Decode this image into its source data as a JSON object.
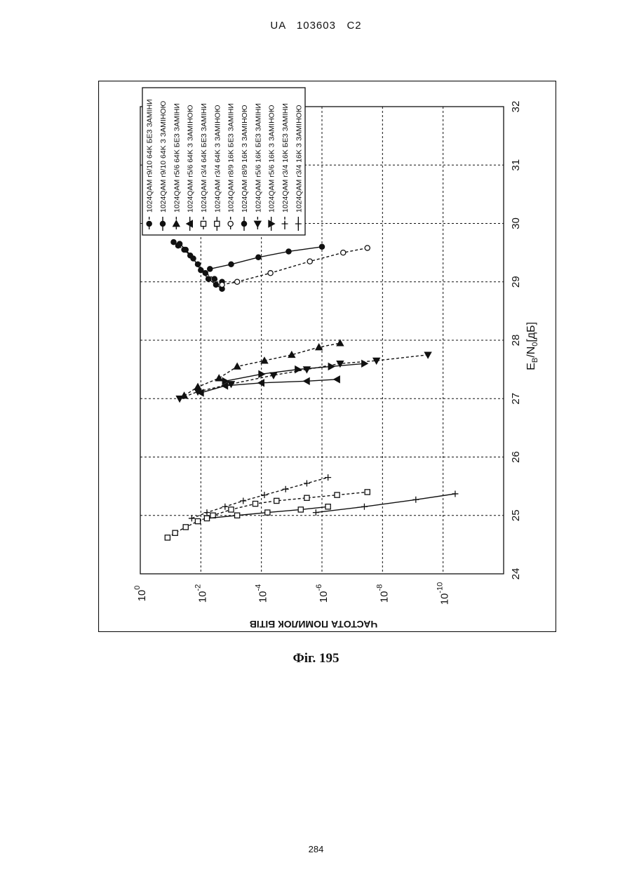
{
  "header": {
    "patent_id": "UA   103603   C2"
  },
  "caption": "Фiг. 195",
  "page_number": "284",
  "chart_data": {
    "type": "line",
    "orientation": "page rotated 90° counter-clockwise",
    "xlabel": "E_B/N_0[дБ]",
    "xlabel_parts": {
      "main": "E",
      "sub1": "B",
      "sep": "/N",
      "sub2": "0",
      "unit": "[дБ]"
    },
    "ylabel": "ЧАСТОТА ПОМИЛОК БІТІВ",
    "xlim": [
      24,
      32
    ],
    "xticks": [
      "24",
      "25",
      "26",
      "27",
      "28",
      "29",
      "30",
      "31",
      "32"
    ],
    "ylim_exp": [
      0,
      -12
    ],
    "yticks": [
      {
        "base": "10",
        "exp": "0",
        "value": 0
      },
      {
        "base": "10",
        "exp": "-2",
        "value": -2
      },
      {
        "base": "10",
        "exp": "-4",
        "value": -4
      },
      {
        "base": "10",
        "exp": "-6",
        "value": -6
      },
      {
        "base": "10",
        "exp": "-8",
        "value": -8
      },
      {
        "base": "10",
        "exp": "-10",
        "value": -10
      }
    ],
    "yscale": "log",
    "grid": true,
    "legend_position": "top-right",
    "series": [
      {
        "name": "1024QAM r9/10 64K",
        "note": "БЕЗ ЗАМІНИ",
        "legend_label": "1024QAM r9/10 64K БЕЗ ЗАМІНИ",
        "marker": "filled-circle",
        "dash": "4,3",
        "x": [
          29.0,
          29.05,
          29.15,
          29.3,
          29.45,
          29.55,
          29.62,
          29.68
        ],
        "y": [
          -2.7,
          -2.45,
          -2.15,
          -1.9,
          -1.65,
          -1.45,
          -1.25,
          -1.1
        ]
      },
      {
        "name": "1024QAM r9/10 64K",
        "note": "З ЗАМІНОЮ",
        "legend_label": "1024QAM r9/10 64K З ЗАМІНОЮ",
        "marker": "filled-circle",
        "dash": "",
        "x": [
          28.88,
          28.95,
          29.05,
          29.2,
          29.4,
          29.55,
          29.65
        ],
        "y": [
          -2.7,
          -2.5,
          -2.25,
          -2.0,
          -1.75,
          -1.5,
          -1.3
        ]
      },
      {
        "name": "1024QAM r5/6 64K",
        "note": "БЕЗ ЗАМІНИ",
        "legend_label": "1024QAM r5/6 64K БЕЗ ЗАМІНИ",
        "marker": "triangle-up",
        "dash": "4,3",
        "x": [
          27.05,
          27.2,
          27.35,
          27.55,
          27.65,
          27.75,
          27.88,
          27.95
        ],
        "y": [
          -1.45,
          -1.9,
          -2.6,
          -3.2,
          -4.1,
          -5.0,
          -5.9,
          -6.6
        ]
      },
      {
        "name": "1024QAM r5/6 64K",
        "note": "З ЗАМІНОЮ",
        "legend_label": "1024QAM r5/6 64K З ЗАМІНОЮ",
        "marker": "triangle-left",
        "dash": "",
        "x": [
          27.1,
          27.22,
          27.27,
          27.3,
          27.33
        ],
        "y": [
          -2.0,
          -2.8,
          -4.0,
          -5.5,
          -6.5
        ]
      },
      {
        "name": "1024QAM r3/4 64K",
        "note": "БЕЗ ЗАМІНИ",
        "legend_label": "1024QAM r3/4 64K БЕЗ ЗАМІНИ",
        "marker": "open-square",
        "dash": "4,3",
        "x": [
          24.62,
          24.7,
          24.8,
          24.9,
          25.0,
          25.1,
          25.2,
          25.25,
          25.3,
          25.35,
          25.4
        ],
        "y": [
          -0.9,
          -1.15,
          -1.5,
          -1.9,
          -2.4,
          -3.0,
          -3.8,
          -4.5,
          -5.5,
          -6.5,
          -7.5
        ]
      },
      {
        "name": "1024QAM r3/4 64K",
        "note": "З ЗАМІНОЮ",
        "legend_label": "1024QAM r3/4 64K З ЗАМІНОЮ",
        "marker": "open-square",
        "dash": "",
        "x": [
          24.95,
          25.0,
          25.05,
          25.1,
          25.15
        ],
        "y": [
          -2.2,
          -3.2,
          -4.2,
          -5.3,
          -6.2
        ]
      },
      {
        "name": "1024QAM r8/9 16K",
        "note": "БЕЗ ЗАМІНИ",
        "legend_label": "1024QAM r8/9 16K БЕЗ ЗАМІНИ",
        "marker": "open-circle",
        "dash": "4,3",
        "x": [
          28.95,
          29.0,
          29.15,
          29.35,
          29.5,
          29.58
        ],
        "y": [
          -2.7,
          -3.2,
          -4.3,
          -5.6,
          -6.7,
          -7.5
        ]
      },
      {
        "name": "1024QAM r8/9 16K",
        "note": "З ЗАМІНОЮ",
        "legend_label": "1024QAM r8/9 16K З ЗАМІНОЮ",
        "marker": "filled-circle",
        "dash": "",
        "x": [
          29.22,
          29.3,
          29.42,
          29.52,
          29.6
        ],
        "y": [
          -2.3,
          -3.0,
          -3.9,
          -4.9,
          -6.0
        ]
      },
      {
        "name": "1024QAM r5/6 16K",
        "note": "БЕЗ ЗАМІНИ",
        "legend_label": "1024QAM r5/6 16K БЕЗ ЗАМІНИ",
        "marker": "triangle-down",
        "dash": "4,3",
        "x": [
          27.0,
          27.12,
          27.25,
          27.4,
          27.5,
          27.6,
          27.65,
          27.75
        ],
        "y": [
          -1.3,
          -1.9,
          -3.0,
          -4.4,
          -5.5,
          -6.6,
          -7.8,
          -9.5
        ]
      },
      {
        "name": "1024QAM r5/6 16K",
        "note": "З ЗАМІНОЮ",
        "legend_label": "1024QAM r5/6 16K З ЗАМІНОЮ",
        "marker": "triangle-right",
        "dash": "",
        "x": [
          27.3,
          27.42,
          27.5,
          27.55,
          27.6
        ],
        "y": [
          -2.8,
          -4.0,
          -5.2,
          -6.3,
          -7.4
        ]
      },
      {
        "name": "1024QAM r3/4 16K",
        "note": "БЕЗ ЗАМІНИ",
        "legend_label": "1024QAM r3/4 16K БЕЗ ЗАМІНИ",
        "marker": "plus",
        "dash": "4,3",
        "x": [
          24.95,
          25.05,
          25.15,
          25.25,
          25.35,
          25.45,
          25.55,
          25.65
        ],
        "y": [
          -1.7,
          -2.2,
          -2.8,
          -3.4,
          -4.1,
          -4.8,
          -5.5,
          -6.2
        ]
      },
      {
        "name": "1024QAM r3/4 16K",
        "note": "З ЗАМІНОЮ",
        "legend_label": "1024QAM r3/4 16K З ЗАМІНОЮ",
        "marker": "plus",
        "dash": "",
        "x": [
          25.05,
          25.15,
          25.27,
          25.37
        ],
        "y": [
          -5.8,
          -7.4,
          -9.1,
          -10.4
        ]
      }
    ]
  }
}
